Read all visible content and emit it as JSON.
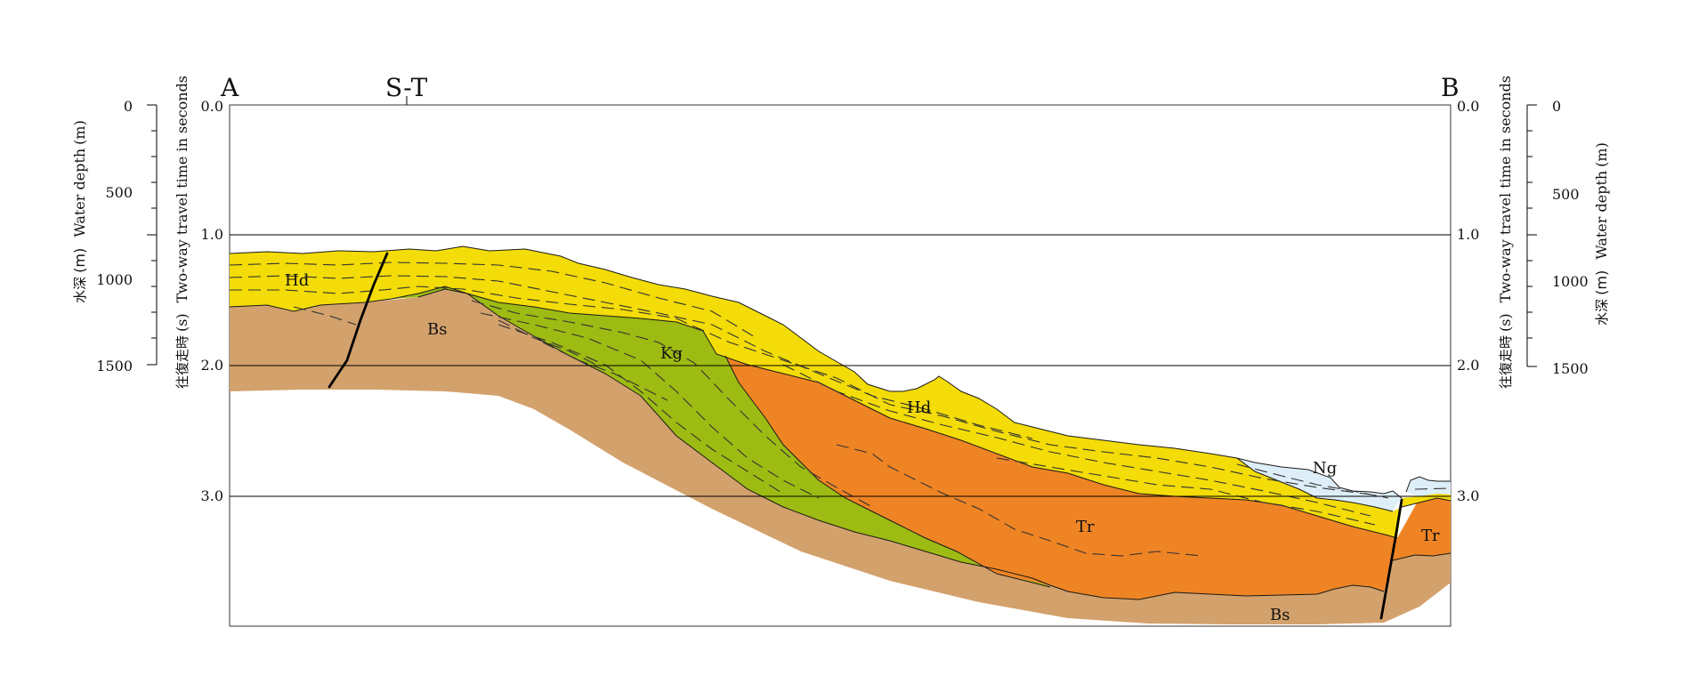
{
  "section": {
    "end_left": "A",
    "end_right": "B",
    "marker": "S-T"
  },
  "axes": {
    "twt_label_en": "Two-way travel time in seconds",
    "twt_label_jp": "往復走時",
    "twt_unit": "(s)",
    "depth_label_en": "Water depth",
    "depth_unit": "(m)",
    "depth_label_jp": "水深",
    "twt_ticks": [
      "0.0",
      "1.0",
      "2.0",
      "3.0"
    ],
    "depth_ticks": [
      "0",
      "500",
      "1000",
      "1500"
    ]
  },
  "units": {
    "hd_upper": "Hd",
    "hd_lower": "Hd",
    "bs_upper": "Bs",
    "bs_lower": "Bs",
    "kg": "Kg",
    "tr_center": "Tr",
    "tr_right": "Tr",
    "ng": "Ng"
  },
  "colors": {
    "hd": "#f3dc07",
    "kg": "#9dbb12",
    "bs": "#d3a16c",
    "tr": "#ef8424",
    "ng": "#ddeef9",
    "line": "#1a1a1a"
  }
}
